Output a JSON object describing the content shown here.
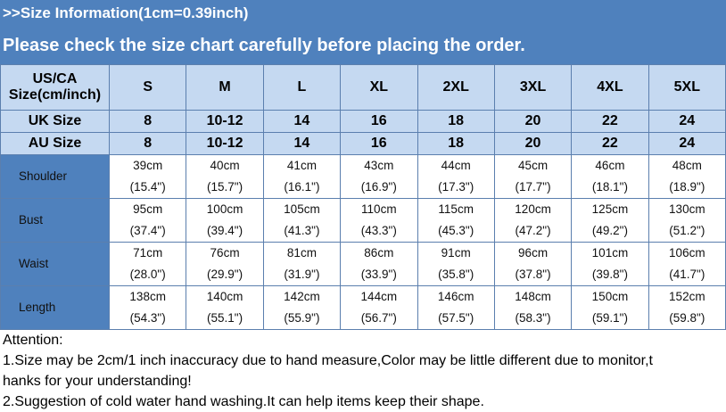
{
  "title": ">>Size Information(1cm=0.39inch)",
  "subtitle": "Please check the size chart carefully before placing the order.",
  "header": {
    "label": "US/CA Size(cm/inch)",
    "sizes": [
      "S",
      "M",
      "L",
      "XL",
      "2XL",
      "3XL",
      "4XL",
      "5XL"
    ]
  },
  "uk": {
    "label": "UK Size",
    "values": [
      "8",
      "10-12",
      "14",
      "16",
      "18",
      "20",
      "22",
      "24"
    ]
  },
  "au": {
    "label": "AU Size",
    "values": [
      "8",
      "10-12",
      "14",
      "16",
      "18",
      "20",
      "22",
      "24"
    ]
  },
  "rows": [
    {
      "label": "Shoulder",
      "cm": [
        "39cm",
        "40cm",
        "41cm",
        "43cm",
        "44cm",
        "45cm",
        "46cm",
        "48cm"
      ],
      "inch": [
        "(15.4\")",
        "(15.7\")",
        "(16.1\")",
        "(16.9\")",
        "(17.3\")",
        "(17.7\")",
        "(18.1\")",
        "(18.9\")"
      ]
    },
    {
      "label": "Bust",
      "cm": [
        "95cm",
        "100cm",
        "105cm",
        "110cm",
        "115cm",
        "120cm",
        "125cm",
        "130cm"
      ],
      "inch": [
        "(37.4\")",
        "(39.4\")",
        "(41.3\")",
        "(43.3\")",
        "(45.3\")",
        "(47.2\")",
        "(49.2\")",
        "(51.2\")"
      ]
    },
    {
      "label": "Waist",
      "cm": [
        "71cm",
        "76cm",
        "81cm",
        "86cm",
        "91cm",
        "96cm",
        "101cm",
        "106cm"
      ],
      "inch": [
        "(28.0\")",
        "(29.9\")",
        "(31.9\")",
        "(33.9\")",
        "(35.8\")",
        "(37.8\")",
        "(39.8\")",
        "(41.7\")"
      ]
    },
    {
      "label": "Length",
      "cm": [
        "138cm",
        "140cm",
        "142cm",
        "144cm",
        "146cm",
        "148cm",
        "150cm",
        "152cm"
      ],
      "inch": [
        "(54.3\")",
        "(55.1\")",
        "(55.9\")",
        "(56.7\")",
        "(57.5\")",
        "(58.3\")",
        "(59.1\")",
        "(59.8\")"
      ]
    }
  ],
  "notes": {
    "heading": "Attention:",
    "line1": "1.Size may be 2cm/1 inch inaccuracy due to hand measure,Color may be little different due to monitor,t",
    "line1b": "hanks for your understanding!",
    "line2": "2.Suggestion of cold water hand washing.It can help items keep their shape."
  },
  "colors": {
    "banner": "#4f81bd",
    "header_cells": "#c5d9f1",
    "row_labels": "#4f81bd"
  }
}
